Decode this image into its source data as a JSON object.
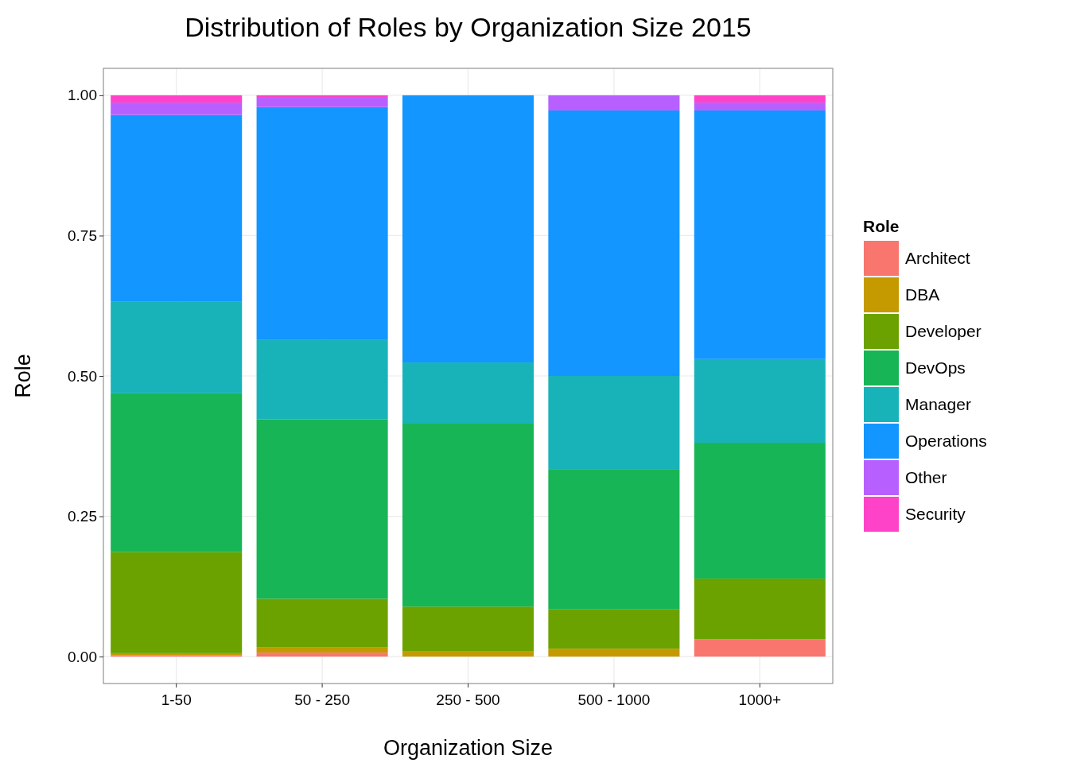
{
  "chart_data": {
    "type": "bar",
    "title": "Distribution of Roles by Organization Size 2015",
    "xlabel": "Organization Size",
    "ylabel": "Role",
    "legend_title": "Role",
    "stacked": true,
    "grid": true,
    "legend": "right",
    "categories": [
      "1-50",
      "50 - 250",
      "250 - 500",
      "500 - 1000",
      "1000+"
    ],
    "ylim": [
      -0.048,
      1.048
    ],
    "yticks": [
      {
        "value": 0,
        "label": "0.00"
      },
      {
        "value": 0.25,
        "label": "0.25"
      },
      {
        "value": 0.5,
        "label": "0.50"
      },
      {
        "value": 0.75,
        "label": "0.75"
      },
      {
        "value": 1,
        "label": "1.00"
      }
    ],
    "series": [
      {
        "name": "Architect",
        "color": "#f8766d",
        "values": [
          0.002,
          0.007,
          0,
          0,
          0.031
        ]
      },
      {
        "name": "DBA",
        "color": "#c49a00",
        "values": [
          0.004,
          0.01,
          0.01,
          0.014,
          0
        ]
      },
      {
        "name": "Developer",
        "color": "#6ba200",
        "values": [
          0.18,
          0.086,
          0.079,
          0.07,
          0.108
        ]
      },
      {
        "name": "DevOps",
        "color": "#17b556",
        "values": [
          0.283,
          0.32,
          0.326,
          0.249,
          0.242
        ]
      },
      {
        "name": "Manager",
        "color": "#18b3b9",
        "values": [
          0.163,
          0.142,
          0.109,
          0.167,
          0.149
        ]
      },
      {
        "name": "Operations",
        "color": "#1396ff",
        "values": [
          0.333,
          0.414,
          0.476,
          0.473,
          0.443
        ]
      },
      {
        "name": "Other",
        "color": "#b760ff",
        "values": [
          0.022,
          0.018,
          0,
          0.027,
          0.014
        ]
      },
      {
        "name": "Security",
        "color": "#ff43c8",
        "values": [
          0.013,
          0.003,
          0,
          0,
          0.013
        ]
      }
    ]
  }
}
